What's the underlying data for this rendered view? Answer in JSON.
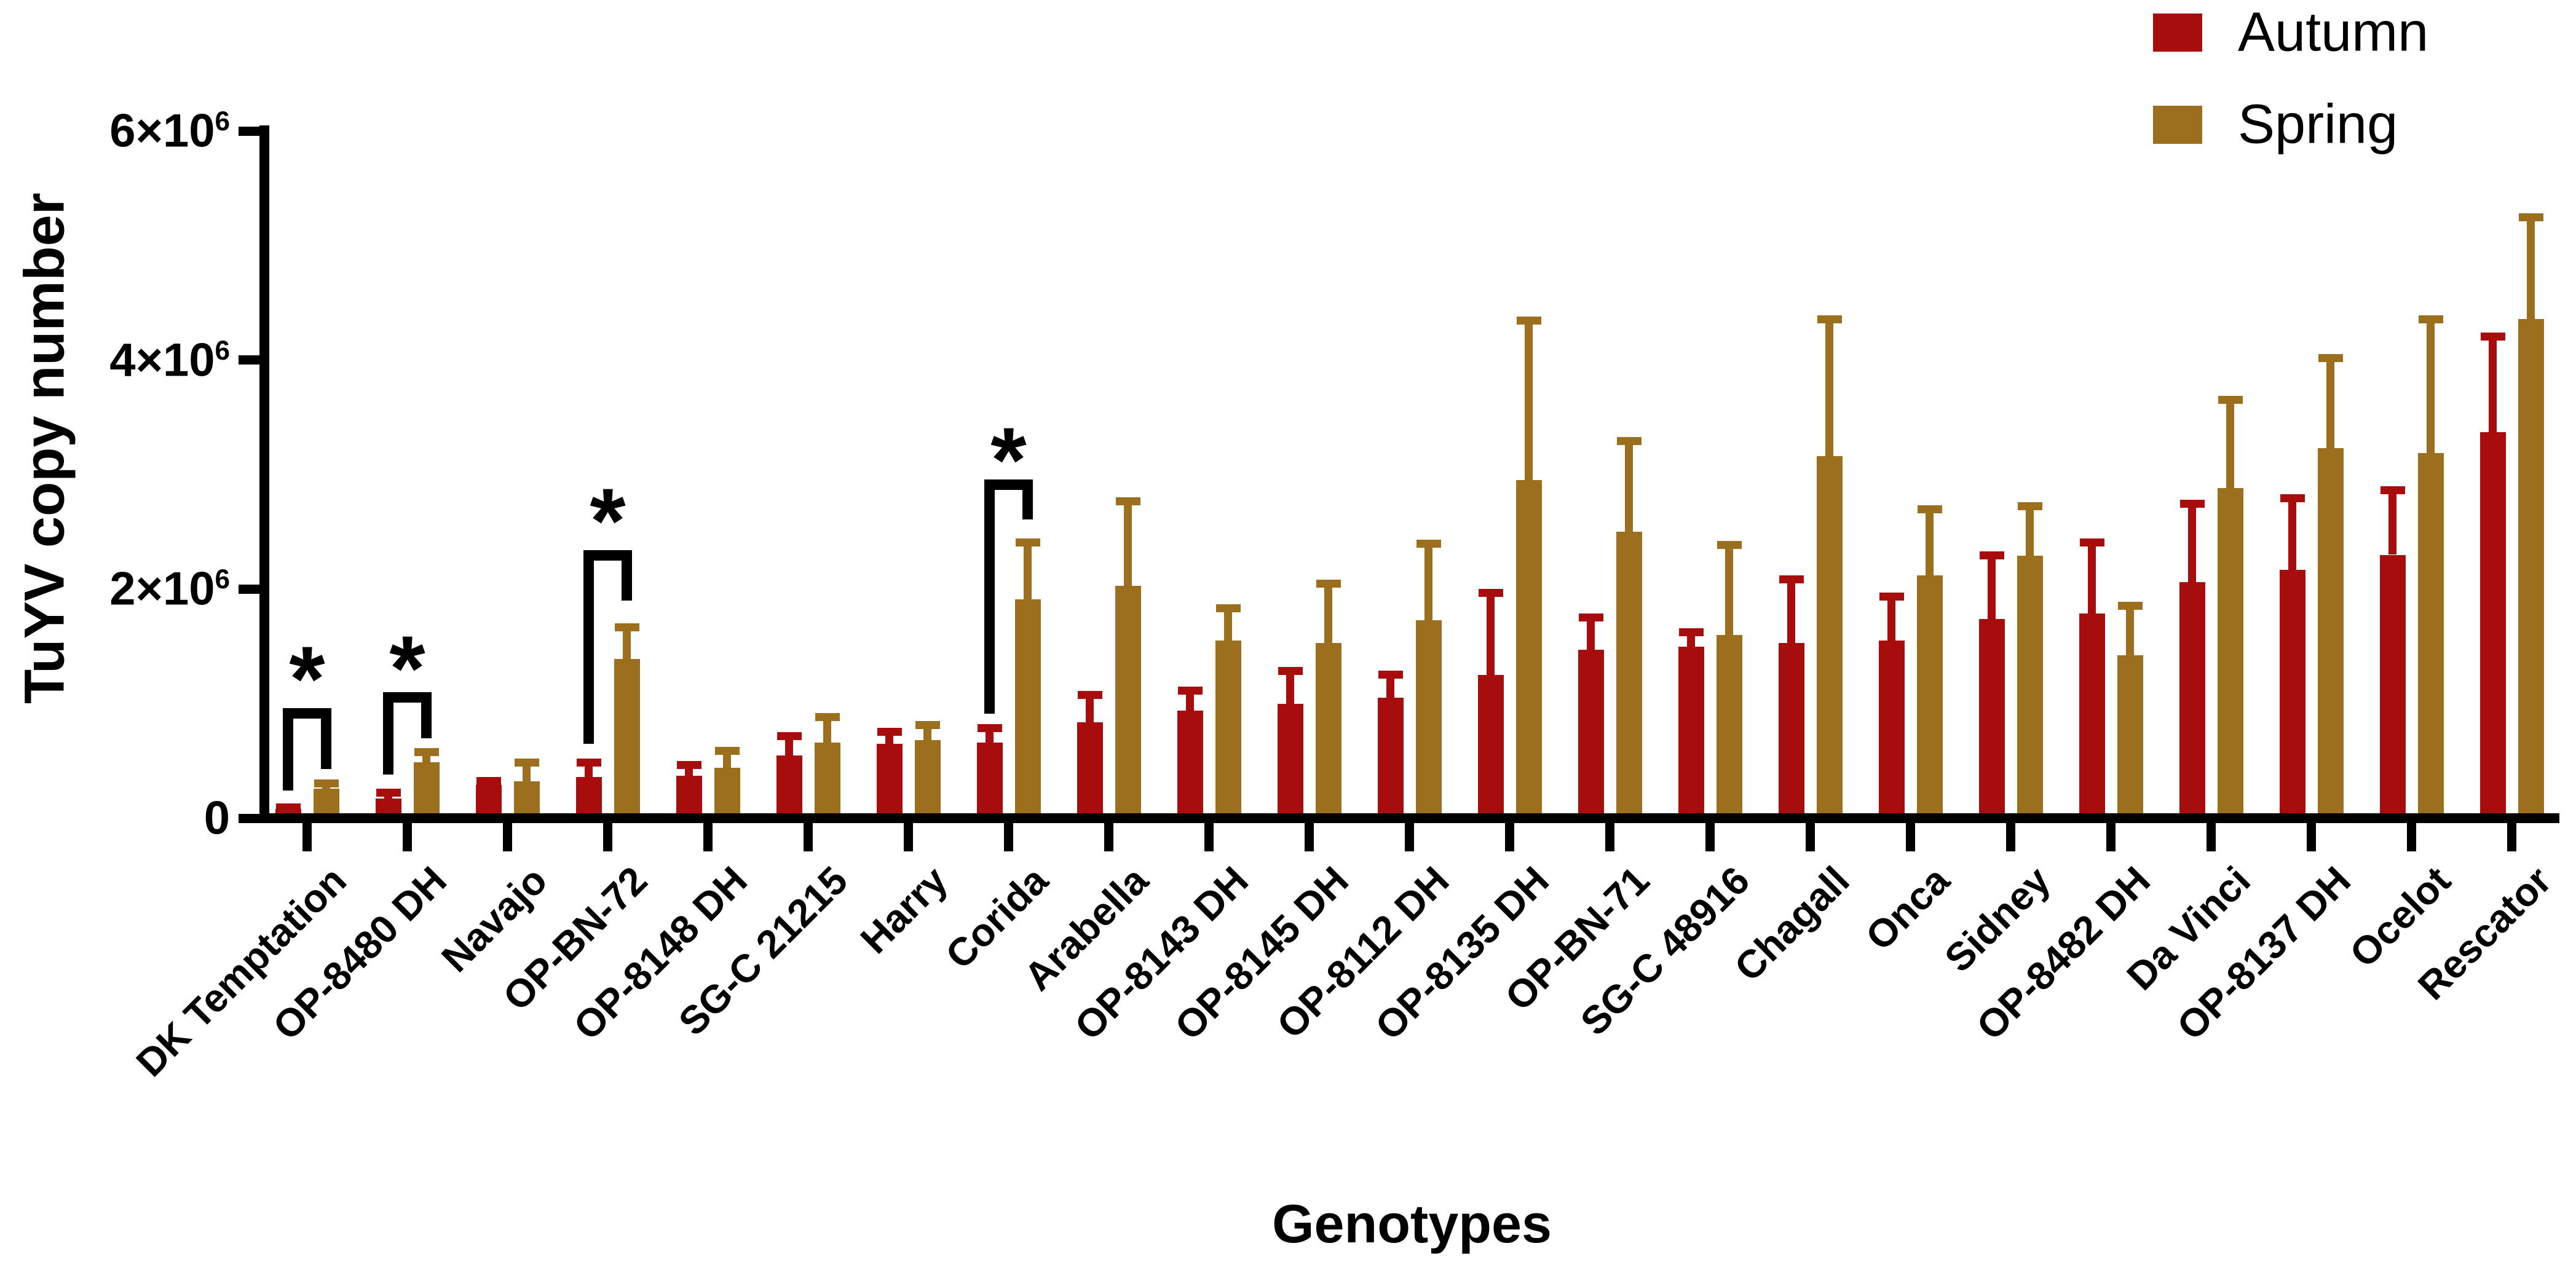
{
  "chart_data": {
    "type": "bar",
    "title": "",
    "xlabel": "Genotypes",
    "ylabel": "TuYV copy number",
    "grid": false,
    "legend_position": "top-right",
    "y_axis": {
      "min": 0,
      "max": 6000000,
      "ticks": [
        {
          "value_millions": 0,
          "label_main": "0",
          "label_exp": ""
        },
        {
          "value_millions": 2,
          "label_main": "2×10",
          "label_exp": "6"
        },
        {
          "value_millions": 4,
          "label_main": "4×10",
          "label_exp": "6"
        },
        {
          "value_millions": 6,
          "label_main": "6×10",
          "label_exp": "6"
        }
      ]
    },
    "categories": [
      "DK Temptation",
      "OP-8480 DH",
      "Navajo",
      "OP-BN-72",
      "OP-8148 DH",
      "SG-C 21215",
      "Harry",
      "Corida",
      "Arabella",
      "OP-8143 DH",
      "OP-8145 DH",
      "OP-8112 DH",
      "OP-8135 DH",
      "OP-BN-71",
      "SG-C 48916",
      "Chagall",
      "Onca",
      "Sidney",
      "OP-8482 DH",
      "Da Vinci",
      "OP-8137 DH",
      "Ocelot",
      "Rescator"
    ],
    "series": [
      {
        "name": "Autumn",
        "color": "#A80D0D",
        "values_millions": [
          0.08,
          0.17,
          0.29,
          0.36,
          0.37,
          0.55,
          0.65,
          0.66,
          0.84,
          0.94,
          1.0,
          1.05,
          1.25,
          1.47,
          1.5,
          1.53,
          1.55,
          1.74,
          1.79,
          2.06,
          2.17,
          2.3,
          3.37
        ],
        "sd_upper_millions": [
          0.05,
          0.09,
          0.07,
          0.16,
          0.13,
          0.2,
          0.14,
          0.16,
          0.27,
          0.21,
          0.32,
          0.24,
          0.75,
          0.32,
          0.16,
          0.59,
          0.42,
          0.59,
          0.65,
          0.72,
          0.66,
          0.6,
          0.87
        ]
      },
      {
        "name": "Spring",
        "color": "#9C6F1F",
        "values_millions": [
          0.26,
          0.49,
          0.32,
          1.39,
          0.44,
          0.66,
          0.68,
          1.91,
          2.03,
          1.55,
          1.53,
          1.73,
          2.95,
          2.5,
          1.6,
          3.16,
          2.12,
          2.29,
          1.42,
          2.88,
          3.23,
          3.19,
          4.36
        ],
        "sd_upper_millions": [
          0.08,
          0.12,
          0.2,
          0.31,
          0.18,
          0.26,
          0.17,
          0.53,
          0.77,
          0.32,
          0.55,
          0.7,
          1.43,
          0.83,
          0.82,
          1.23,
          0.61,
          0.47,
          0.47,
          0.81,
          0.82,
          1.2,
          0.92
        ]
      }
    ],
    "significance": [
      {
        "category_index": 0,
        "label": "*",
        "top_millions": 0.96,
        "left_leg_bottom_millions": 0.24,
        "right_leg_bottom_millions": 0.43,
        "star_y_millions": 1.17
      },
      {
        "category_index": 1,
        "label": "*",
        "top_millions": 1.1,
        "left_leg_bottom_millions": 0.38,
        "right_leg_bottom_millions": 0.7,
        "star_y_millions": 1.26
      },
      {
        "category_index": 3,
        "label": "*",
        "top_millions": 2.34,
        "left_leg_bottom_millions": 0.65,
        "right_leg_bottom_millions": 1.9,
        "star_y_millions": 2.55
      },
      {
        "category_index": 7,
        "label": "*",
        "top_millions": 2.96,
        "left_leg_bottom_millions": 0.91,
        "right_leg_bottom_millions": 2.61,
        "star_y_millions": 3.08
      }
    ]
  }
}
